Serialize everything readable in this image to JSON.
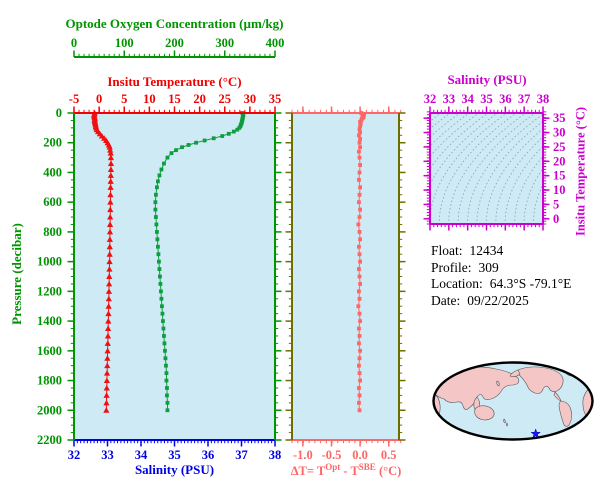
{
  "colors": {
    "background": "#ffffff",
    "panel_bg": "#cdeaf5",
    "green": "#009400",
    "green_curve": "#0f9d3f",
    "red": "#f00000",
    "red_curve": "#f01010",
    "blue": "#0000e6",
    "magenta": "#cc00cc",
    "salmon": "#ff6666",
    "olive": "#6e6e00",
    "contour": "#8fa6b4",
    "land": "#f5c6c6",
    "map_outline": "#000000",
    "star": "#1515ff",
    "text": "#000000"
  },
  "info": {
    "lines": [
      {
        "label": "Float:",
        "value": "12434"
      },
      {
        "label": "Profile:",
        "value": "309"
      },
      {
        "label": "Location:",
        "value": "64.3°S -79.1°E"
      },
      {
        "label": "Date:",
        "value": "09/22/2025"
      }
    ]
  },
  "chart_data": [
    {
      "id": "profile-panel",
      "type": "line",
      "x_axes": [
        {
          "id": "oxygen",
          "label": "Optode Oxygen Concentration (µm/kg)",
          "range": [
            0,
            400
          ],
          "ticks": [
            0,
            100,
            200,
            300,
            400
          ],
          "tick_labels": [
            "0",
            "100",
            "200",
            "300",
            "400"
          ],
          "minor_step": 10,
          "color_key": "green"
        },
        {
          "id": "temperature",
          "label": "Insitu Temperature (°C)",
          "range": [
            -5,
            35
          ],
          "ticks": [
            -5,
            0,
            5,
            10,
            15,
            20,
            25,
            30,
            35
          ],
          "tick_labels": [
            "-5",
            "0",
            "5",
            "10",
            "15",
            "20",
            "25",
            "30",
            "35"
          ],
          "minor_step": 1,
          "color_key": "red"
        },
        {
          "id": "salinity",
          "label": "Salinity (PSU)",
          "range": [
            32,
            38
          ],
          "ticks": [
            32,
            33,
            34,
            35,
            36,
            37,
            38
          ],
          "tick_labels": [
            "32",
            "33",
            "34",
            "35",
            "36",
            "37",
            "38"
          ],
          "minor_step": 0.1,
          "color_key": "blue"
        }
      ],
      "y_axis": {
        "label": "Pressure (decibar)",
        "range": [
          0,
          2200
        ],
        "ticks": [
          0,
          200,
          400,
          600,
          800,
          1000,
          1200,
          1400,
          1600,
          1800,
          2000,
          2200
        ],
        "tick_labels": [
          "0",
          "200",
          "400",
          "600",
          "800",
          "1000",
          "1200",
          "1400",
          "1600",
          "1800",
          "2000",
          "2200"
        ],
        "minor_step": 50,
        "color_key": "green",
        "direction": "down"
      },
      "series": [
        {
          "name": "insitu-temperature",
          "x_axis": "temperature",
          "marker": "triangle",
          "color_key": "red_curve",
          "points": [
            [
              -0.9,
              0
            ],
            [
              -0.95,
              8
            ],
            [
              -1.0,
              16
            ],
            [
              -0.95,
              24
            ],
            [
              -0.9,
              32
            ],
            [
              -0.85,
              40
            ],
            [
              -0.9,
              48
            ],
            [
              -0.85,
              56
            ],
            [
              -0.8,
              64
            ],
            [
              -0.75,
              72
            ],
            [
              -0.7,
              80
            ],
            [
              -0.65,
              90
            ],
            [
              -0.6,
              100
            ],
            [
              -0.45,
              112
            ],
            [
              -0.2,
              125
            ],
            [
              0.15,
              140
            ],
            [
              0.55,
              155
            ],
            [
              1.0,
              170
            ],
            [
              1.4,
              185
            ],
            [
              1.7,
              200
            ],
            [
              1.95,
              215
            ],
            [
              2.1,
              230
            ],
            [
              2.2,
              250
            ],
            [
              2.3,
              270
            ],
            [
              2.35,
              300
            ],
            [
              2.37,
              340
            ],
            [
              2.35,
              380
            ],
            [
              2.33,
              420
            ],
            [
              2.3,
              460
            ],
            [
              2.28,
              500
            ],
            [
              2.26,
              550
            ],
            [
              2.24,
              600
            ],
            [
              2.22,
              650
            ],
            [
              2.2,
              700
            ],
            [
              2.18,
              750
            ],
            [
              2.16,
              800
            ],
            [
              2.14,
              850
            ],
            [
              2.12,
              900
            ],
            [
              2.1,
              950
            ],
            [
              2.08,
              1000
            ],
            [
              2.05,
              1050
            ],
            [
              2.02,
              1100
            ],
            [
              1.99,
              1150
            ],
            [
              1.96,
              1200
            ],
            [
              1.93,
              1250
            ],
            [
              1.9,
              1300
            ],
            [
              1.86,
              1350
            ],
            [
              1.83,
              1400
            ],
            [
              1.79,
              1450
            ],
            [
              1.76,
              1500
            ],
            [
              1.72,
              1550
            ],
            [
              1.69,
              1600
            ],
            [
              1.65,
              1650
            ],
            [
              1.62,
              1700
            ],
            [
              1.58,
              1750
            ],
            [
              1.55,
              1800
            ],
            [
              1.52,
              1850
            ],
            [
              1.49,
              1900
            ],
            [
              1.46,
              1950
            ],
            [
              1.43,
              2000
            ]
          ]
        },
        {
          "name": "optode-oxygen",
          "x_axis": "oxygen",
          "marker": "square",
          "color_key": "green_curve",
          "points": [
            [
              335,
              0
            ],
            [
              336,
              8
            ],
            [
              337,
              16
            ],
            [
              336,
              24
            ],
            [
              336,
              32
            ],
            [
              335,
              40
            ],
            [
              335,
              48
            ],
            [
              334,
              56
            ],
            [
              334,
              64
            ],
            [
              333,
              72
            ],
            [
              332,
              80
            ],
            [
              331,
              90
            ],
            [
              329,
              100
            ],
            [
              325,
              112
            ],
            [
              318,
              125
            ],
            [
              308,
              140
            ],
            [
              295,
              155
            ],
            [
              278,
              170
            ],
            [
              260,
              185
            ],
            [
              243,
              200
            ],
            [
              228,
              215
            ],
            [
              215,
              230
            ],
            [
              203,
              250
            ],
            [
              194,
              270
            ],
            [
              186,
              300
            ],
            [
              179,
              340
            ],
            [
              174,
              380
            ],
            [
              170,
              420
            ],
            [
              167,
              460
            ],
            [
              165,
              500
            ],
            [
              163,
              550
            ],
            [
              162,
              600
            ],
            [
              162,
              650
            ],
            [
              163,
              700
            ],
            [
              164,
              750
            ],
            [
              165,
              800
            ],
            [
              166,
              850
            ],
            [
              167,
              900
            ],
            [
              168,
              950
            ],
            [
              169,
              1000
            ],
            [
              170,
              1050
            ],
            [
              171,
              1100
            ],
            [
              172,
              1150
            ],
            [
              173,
              1200
            ],
            [
              174,
              1250
            ],
            [
              175,
              1300
            ],
            [
              176,
              1350
            ],
            [
              177,
              1400
            ],
            [
              178,
              1450
            ],
            [
              179,
              1500
            ],
            [
              180,
              1550
            ],
            [
              181,
              1600
            ],
            [
              182,
              1650
            ],
            [
              183,
              1700
            ],
            [
              184,
              1750
            ],
            [
              184,
              1800
            ],
            [
              185,
              1850
            ],
            [
              185,
              1900
            ],
            [
              186,
              1950
            ],
            [
              186,
              2000
            ]
          ]
        }
      ]
    },
    {
      "id": "delta-t-panel",
      "type": "line",
      "xlabel": "ΔT= T^Opt - T^SBE (°C)",
      "xlabel_parts": {
        "p1": "ΔT= T",
        "sup1": "Opt",
        "p2": " - T",
        "sup2": "SBE",
        "p3": " (°C)"
      },
      "x_range": [
        -1.19,
        0.68
      ],
      "x_ticks": [
        -1.0,
        -0.5,
        0.0,
        0.5
      ],
      "x_tick_labels": [
        "-1.0",
        "-0.5",
        "0.0",
        "0.5"
      ],
      "x_minor_step": 0.1,
      "y_range": [
        0,
        2200
      ],
      "y_major_step": 200,
      "y_minor_step": 50,
      "series": [
        {
          "name": "delta-temperature",
          "marker": "square",
          "color_key": "salmon",
          "points": [
            [
              0.02,
              0
            ],
            [
              0.05,
              5
            ],
            [
              0.07,
              10
            ],
            [
              0.06,
              15
            ],
            [
              0.04,
              20
            ],
            [
              0.05,
              25
            ],
            [
              0.06,
              30
            ],
            [
              0.04,
              35
            ],
            [
              0.03,
              40
            ],
            [
              0.02,
              50
            ],
            [
              0.0,
              60
            ],
            [
              0.01,
              75
            ],
            [
              0.0,
              90
            ],
            [
              -0.01,
              110
            ],
            [
              0.0,
              130
            ],
            [
              -0.02,
              150
            ],
            [
              0.0,
              175
            ],
            [
              -0.01,
              200
            ],
            [
              0.0,
              230
            ],
            [
              -0.02,
              260
            ],
            [
              -0.01,
              300
            ],
            [
              0.0,
              350
            ],
            [
              -0.01,
              400
            ],
            [
              -0.02,
              450
            ],
            [
              0.0,
              500
            ],
            [
              -0.01,
              550
            ],
            [
              -0.02,
              600
            ],
            [
              0.0,
              650
            ],
            [
              -0.01,
              700
            ],
            [
              -0.03,
              750
            ],
            [
              -0.01,
              800
            ],
            [
              0.0,
              850
            ],
            [
              -0.02,
              900
            ],
            [
              -0.01,
              950
            ],
            [
              0.0,
              1000
            ],
            [
              -0.02,
              1050
            ],
            [
              -0.01,
              1100
            ],
            [
              0.0,
              1150
            ],
            [
              -0.02,
              1200
            ],
            [
              -0.01,
              1250
            ],
            [
              -0.03,
              1300
            ],
            [
              -0.01,
              1350
            ],
            [
              0.0,
              1400
            ],
            [
              -0.02,
              1450
            ],
            [
              -0.01,
              1500
            ],
            [
              -0.02,
              1550
            ],
            [
              0.0,
              1600
            ],
            [
              -0.01,
              1650
            ],
            [
              -0.02,
              1700
            ],
            [
              -0.01,
              1750
            ],
            [
              0.0,
              1800
            ],
            [
              -0.02,
              1850
            ],
            [
              -0.01,
              1900
            ],
            [
              -0.02,
              1950
            ],
            [
              -0.01,
              2000
            ]
          ]
        }
      ]
    },
    {
      "id": "ts-diagram",
      "type": "line",
      "top_label": "Salinity (PSU)",
      "right_label": "Insitu Temperature (°C)",
      "x_range": [
        32,
        38
      ],
      "x_ticks": [
        32,
        33,
        34,
        35,
        36,
        37,
        38
      ],
      "x_tick_labels": [
        "32",
        "33",
        "34",
        "35",
        "36",
        "37",
        "38"
      ],
      "x_minor_step": 0.2,
      "y_range": [
        -1.8,
        36.8
      ],
      "y_ticks": [
        0,
        5,
        10,
        15,
        20,
        25,
        30,
        35
      ],
      "y_tick_labels": [
        "0",
        "5",
        "10",
        "15",
        "20",
        "25",
        "30",
        "35"
      ],
      "y_minor_step": 1,
      "contours": {
        "description": "sigma-theta isopycnal curves, gray dotted",
        "sigma_step": 0.5
      }
    },
    {
      "id": "location-map",
      "type": "map",
      "projection": "oval world map, Pacific centered",
      "marker": {
        "shape": "star",
        "color_key": "star",
        "u": 0.64,
        "v": 0.91
      }
    }
  ]
}
